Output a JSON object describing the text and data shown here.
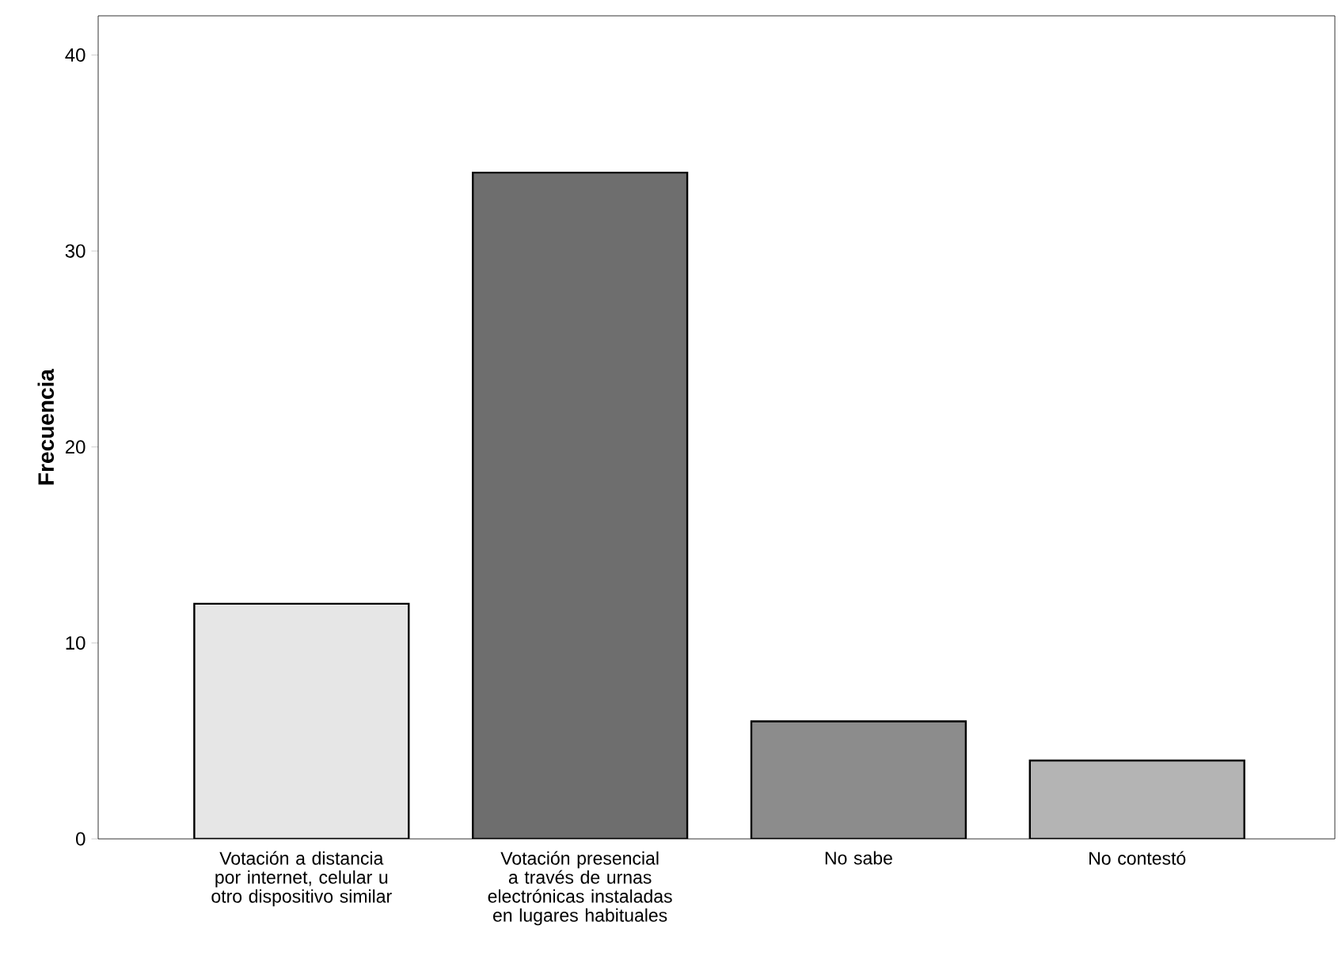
{
  "chart_data": {
    "type": "bar",
    "ylabel": "**Frecuencia**",
    "categories": [
      "Votación a distancia por internet, celular u otro dispositivo similar",
      "Votación presencial a través de urnas electrónicas instaladas en lugares habituales",
      "No sabe",
      "No contestó"
    ],
    "values": [
      12,
      34,
      6,
      4
    ],
    "colors": [
      "#e6e6e6",
      "#6e6e6e",
      "#8c8c8c",
      "#b4b4b4"
    ],
    "ylim": [
      0,
      42
    ],
    "yticks": [
      0,
      10,
      20,
      30,
      40
    ],
    "grid": false
  }
}
